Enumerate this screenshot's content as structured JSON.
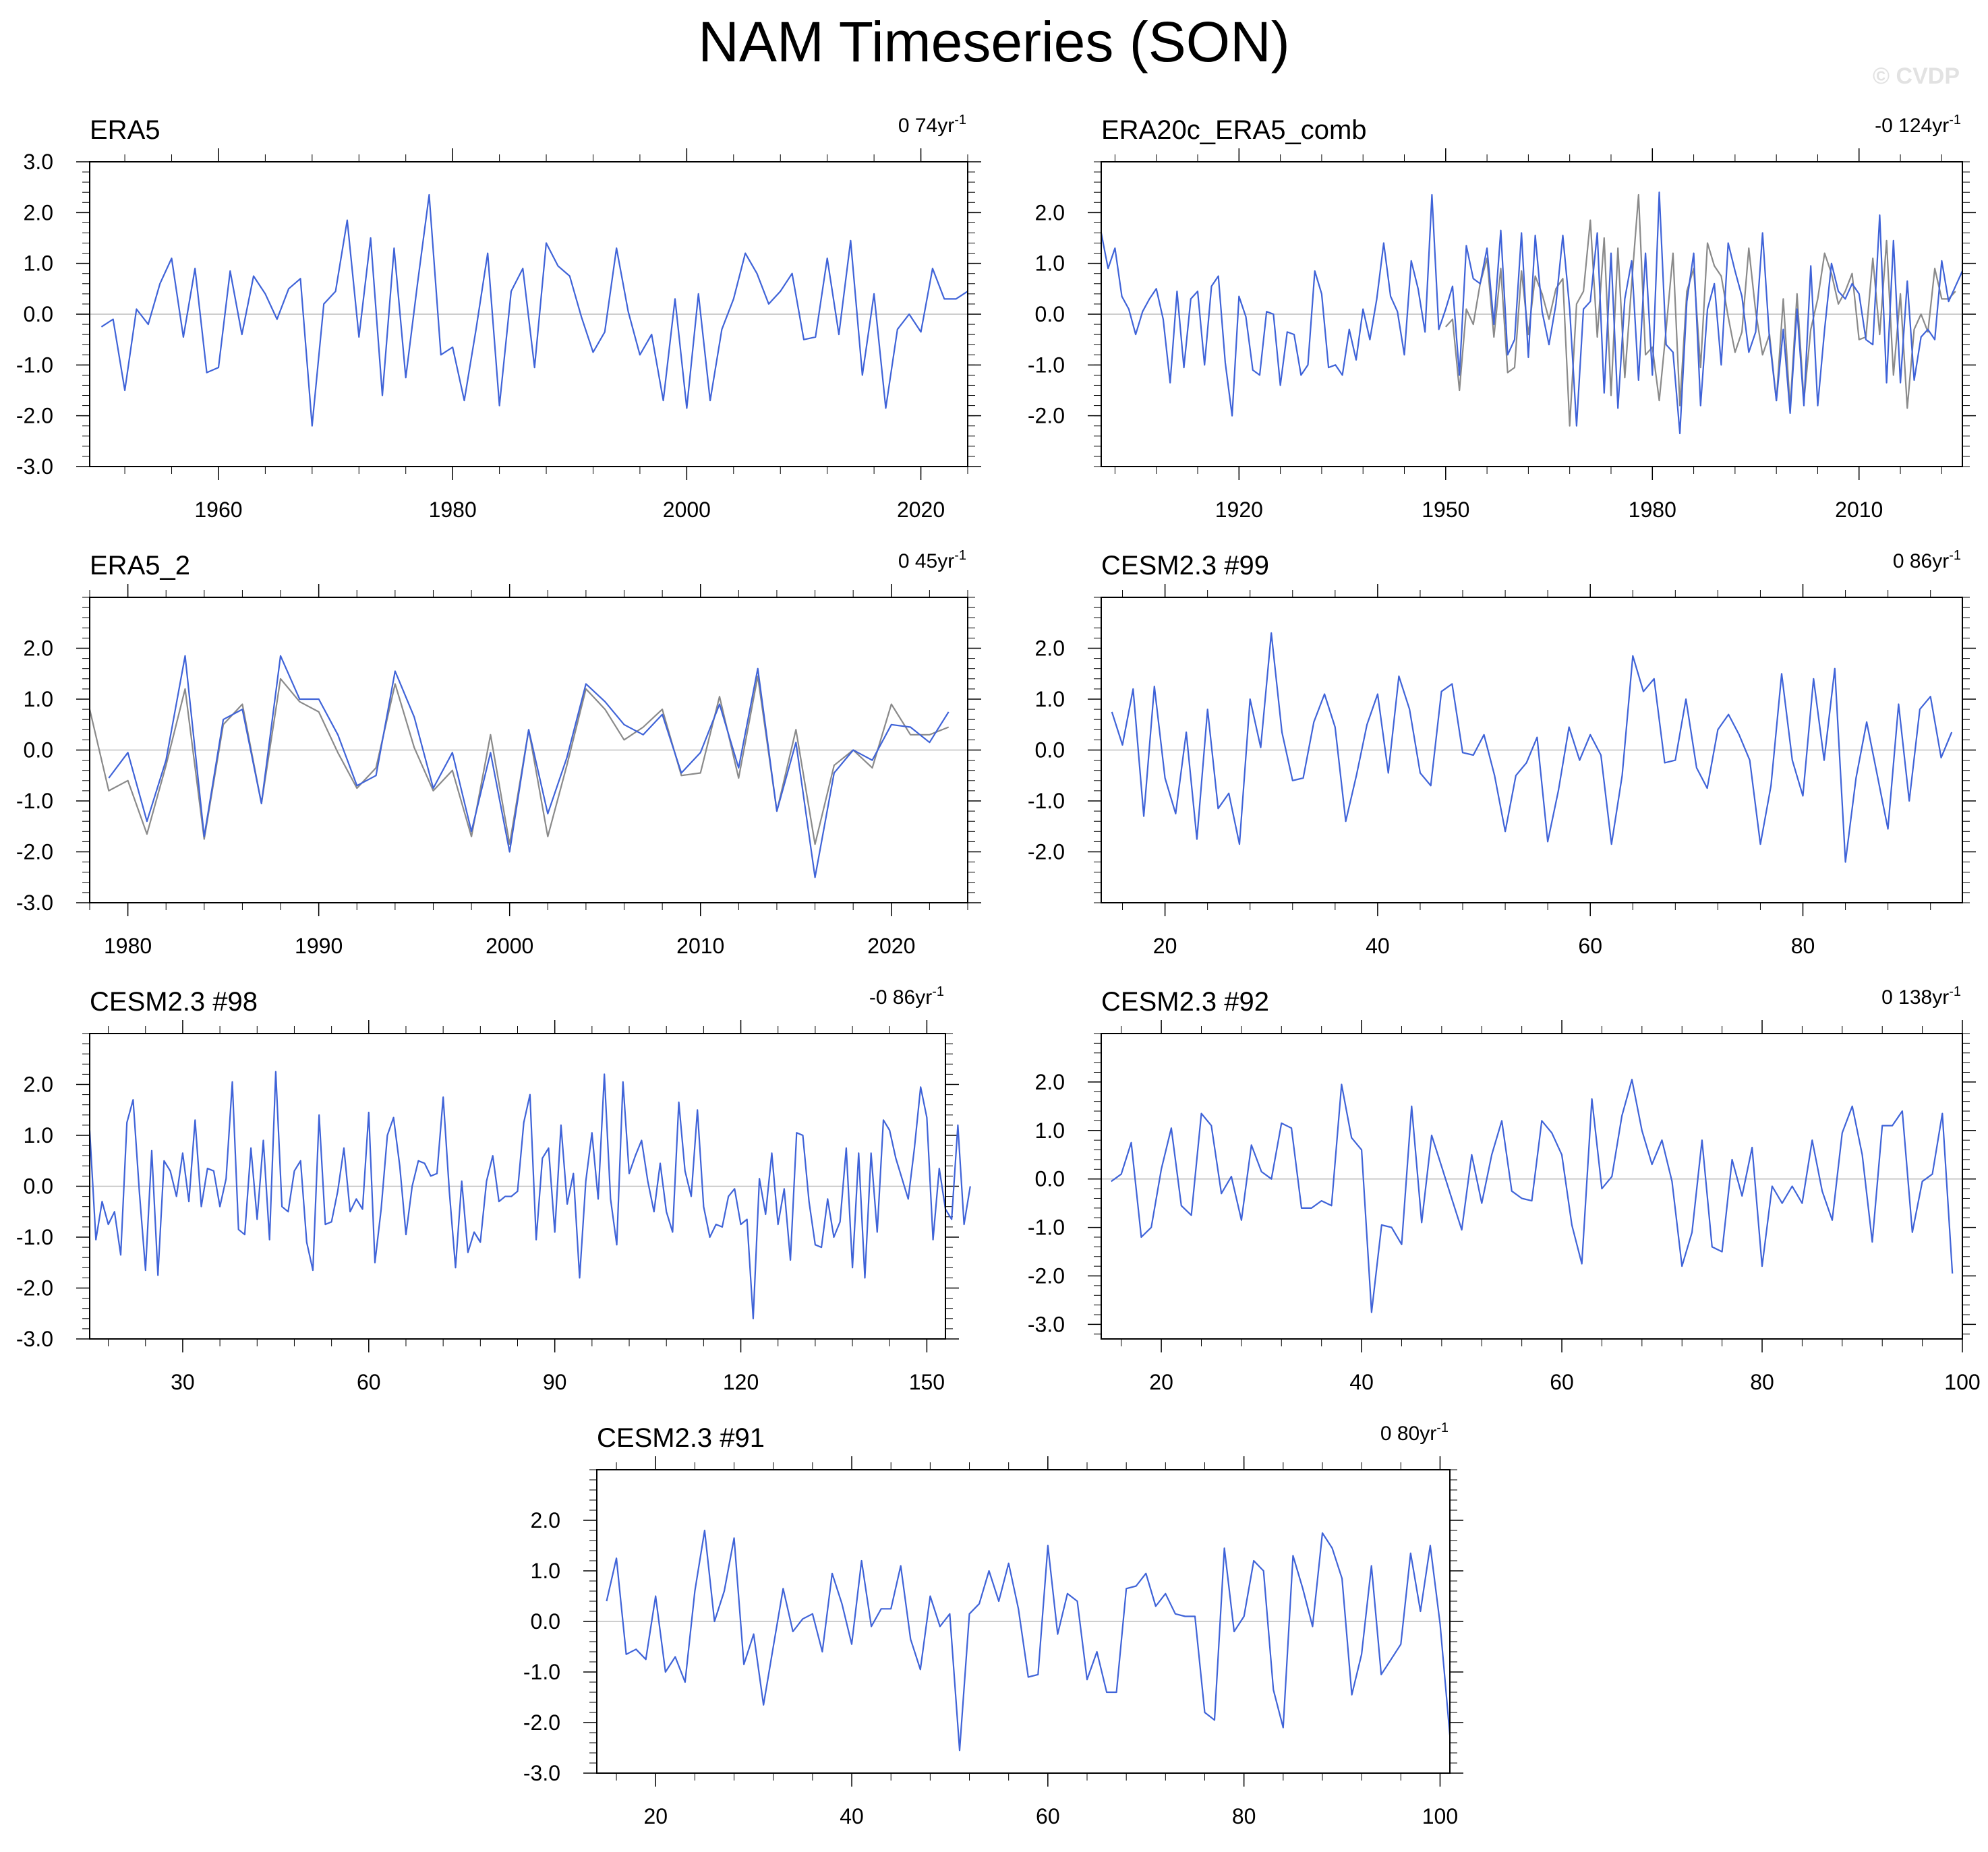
{
  "title": "NAM Timeseries (SON)",
  "watermark": "© CVDP",
  "colors": {
    "model": "#3f63d8",
    "obs": "#8a8a8a",
    "zero_line": "#bdbdbd"
  },
  "chart_data": [
    {
      "id": "p1",
      "type": "line",
      "title": "ERA5",
      "trend_text": "0 74yr",
      "trend_sup": "-1",
      "xlim": [
        1949,
        2024
      ],
      "ylim": [
        -3,
        3
      ],
      "xticks": [
        1960,
        1980,
        2000,
        2020
      ],
      "yticks": [
        -3,
        -2,
        -1,
        0,
        1,
        2,
        3
      ],
      "ytick_labels": [
        "-3.0",
        "-2.0",
        "-1.0",
        "0.0",
        "1.0",
        "2.0",
        "3.0"
      ],
      "series": [
        {
          "name": "ERA5",
          "color": "model",
          "x0": 1950,
          "values": [
            -0.25,
            -0.1,
            -1.5,
            0.1,
            -0.2,
            0.6,
            1.1,
            -0.45,
            0.9,
            -1.15,
            -1.05,
            0.85,
            -0.4,
            0.75,
            0.4,
            -0.1,
            0.5,
            0.7,
            -2.2,
            0.2,
            0.45,
            1.85,
            -0.45,
            1.5,
            -1.6,
            1.3,
            -1.25,
            0.6,
            2.35,
            -0.8,
            -0.65,
            -1.7,
            -0.3,
            1.2,
            -1.8,
            0.45,
            0.9,
            -1.05,
            1.4,
            0.95,
            0.75,
            -0.05,
            -0.75,
            -0.35,
            1.3,
            0.05,
            -0.8,
            -0.4,
            -1.7,
            0.3,
            -1.85,
            0.4,
            -1.7,
            -0.3,
            0.3,
            1.2,
            0.8,
            0.2,
            0.45,
            0.8,
            -0.5,
            -0.45,
            1.1,
            -0.4,
            1.45,
            -1.2,
            0.4,
            -1.85,
            -0.3,
            0.0,
            -0.35,
            0.9,
            0.3,
            0.3,
            0.45
          ]
        }
      ]
    },
    {
      "id": "p2",
      "type": "line",
      "title": "ERA20c_ERA5_comb",
      "trend_text": "-0 124yr",
      "trend_sup": "-1",
      "xlim": [
        1900,
        2025
      ],
      "ylim": [
        -3,
        3
      ],
      "xticks": [
        1920,
        1950,
        1980,
        2010
      ],
      "yticks": [
        -2,
        -1,
        0,
        1,
        2
      ],
      "ytick_labels": [
        "-2.0",
        "-1.0",
        "0.0",
        "1.0",
        "2.0"
      ],
      "series": [
        {
          "name": "ERA5",
          "color": "obs",
          "x0": 1950,
          "values": [
            -0.25,
            -0.1,
            -1.5,
            0.1,
            -0.2,
            0.6,
            1.1,
            -0.45,
            0.9,
            -1.15,
            -1.05,
            0.85,
            -0.4,
            0.75,
            0.4,
            -0.1,
            0.5,
            0.7,
            -2.2,
            0.2,
            0.45,
            1.85,
            -0.45,
            1.5,
            -1.6,
            1.3,
            -1.25,
            0.6,
            2.35,
            -0.8,
            -0.65,
            -1.7,
            -0.3,
            1.2,
            -1.8,
            0.45,
            0.9,
            -1.05,
            1.4,
            0.95,
            0.75,
            -0.05,
            -0.75,
            -0.35,
            1.3,
            0.05,
            -0.8,
            -0.4,
            -1.7,
            0.3,
            -1.85,
            0.4,
            -1.7,
            -0.3,
            0.3,
            1.2,
            0.8,
            0.2,
            0.45,
            0.8,
            -0.5,
            -0.45,
            1.1,
            -0.4,
            1.45,
            -1.2,
            0.4,
            -1.85,
            -0.3,
            0.0,
            -0.35,
            0.9,
            0.3,
            0.3,
            0.45
          ]
        },
        {
          "name": "ERA20c_ERA5_comb",
          "color": "model",
          "x0": 1900,
          "values": [
            1.6,
            0.9,
            1.3,
            0.35,
            0.1,
            -0.4,
            0.05,
            0.3,
            0.5,
            -0.1,
            -1.35,
            0.45,
            -1.05,
            0.3,
            0.45,
            -1.0,
            0.55,
            0.75,
            -0.95,
            -2.0,
            0.35,
            -0.05,
            -1.1,
            -1.2,
            0.05,
            0.0,
            -1.4,
            -0.35,
            -0.4,
            -1.2,
            -1.0,
            0.85,
            0.4,
            -1.05,
            -1.0,
            -1.2,
            -0.3,
            -0.9,
            0.1,
            -0.5,
            0.3,
            1.4,
            0.35,
            0.05,
            -0.8,
            1.05,
            0.5,
            -0.35,
            2.35,
            -0.3,
            0.1,
            0.55,
            -1.2,
            1.35,
            0.7,
            0.6,
            1.3,
            -0.2,
            1.65,
            -0.8,
            -0.5,
            1.6,
            -0.85,
            1.55,
            0.05,
            -0.6,
            0.2,
            1.55,
            0.1,
            -2.2,
            0.1,
            0.25,
            1.6,
            -1.55,
            1.2,
            -1.85,
            0.3,
            1.05,
            -1.3,
            1.2,
            -1.2,
            2.4,
            -0.6,
            -0.75,
            -2.35,
            0.25,
            1.2,
            -1.8,
            0.1,
            0.6,
            -1.0,
            1.4,
            0.85,
            0.35,
            -0.75,
            -0.35,
            1.6,
            -0.5,
            -1.7,
            -0.3,
            -1.95,
            0.1,
            -1.8,
            0.95,
            -1.8,
            -0.3,
            1.0,
            0.45,
            0.3,
            0.6,
            0.4,
            -0.5,
            -0.6,
            1.95,
            -1.35,
            1.45,
            -1.35,
            0.65,
            -1.3,
            -0.45,
            -0.3,
            -0.5,
            1.05,
            0.25,
            0.55,
            0.85
          ]
        }
      ]
    },
    {
      "id": "p3",
      "type": "line",
      "title": "ERA5_2",
      "trend_text": "0 45yr",
      "trend_sup": "-1",
      "xlim": [
        1978,
        2024
      ],
      "ylim": [
        -3,
        3
      ],
      "xticks": [
        1980,
        1990,
        2000,
        2010,
        2020
      ],
      "yticks": [
        -3,
        -2,
        -1,
        0,
        1,
        2
      ],
      "ytick_labels": [
        "-3.0",
        "-2.0",
        "-1.0",
        "0.0",
        "1.0",
        "2.0"
      ],
      "series": [
        {
          "name": "ERA5",
          "color": "obs",
          "x0": 1978,
          "values": [
            0.8,
            -0.8,
            -0.6,
            -1.65,
            -0.3,
            1.2,
            -1.75,
            0.5,
            0.9,
            -1.05,
            1.4,
            0.95,
            0.75,
            -0.05,
            -0.75,
            -0.35,
            1.3,
            0.05,
            -0.8,
            -0.4,
            -1.7,
            0.3,
            -1.85,
            0.4,
            -1.7,
            -0.3,
            1.2,
            0.8,
            0.2,
            0.45,
            0.8,
            -0.5,
            -0.45,
            1.05,
            -0.55,
            1.45,
            -1.2,
            0.4,
            -1.85,
            -0.3,
            0.0,
            -0.35,
            0.9,
            0.3,
            0.3,
            0.45
          ]
        },
        {
          "name": "ERA5_2",
          "color": "model",
          "x0": 1979,
          "values": [
            -0.55,
            -0.05,
            -1.4,
            -0.2,
            1.85,
            -1.7,
            0.6,
            0.8,
            -1.05,
            1.85,
            1.0,
            1.0,
            0.3,
            -0.7,
            -0.5,
            1.55,
            0.65,
            -0.75,
            -0.05,
            -1.6,
            -0.05,
            -2.0,
            0.4,
            -1.25,
            -0.15,
            1.3,
            0.95,
            0.5,
            0.3,
            0.7,
            -0.45,
            -0.05,
            0.9,
            -0.35,
            1.6,
            -1.2,
            0.15,
            -2.5,
            -0.45,
            0.0,
            -0.2,
            0.5,
            0.45,
            0.15,
            0.75
          ]
        }
      ]
    },
    {
      "id": "p4",
      "type": "line",
      "title": "CESM2.3 #99",
      "trend_text": "0 86yr",
      "trend_sup": "-1",
      "xlim": [
        14,
        95
      ],
      "ylim": [
        -3,
        3
      ],
      "xticks": [
        20,
        40,
        60,
        80
      ],
      "yticks": [
        -2,
        -1,
        0,
        1,
        2
      ],
      "ytick_labels": [
        "-2.0",
        "-1.0",
        "0.0",
        "1.0",
        "2.0"
      ],
      "series": [
        {
          "name": "CESM2.3 #99",
          "color": "model",
          "x0": 15,
          "values": [
            0.75,
            0.1,
            1.2,
            -1.3,
            1.25,
            -0.55,
            -1.25,
            0.35,
            -1.75,
            0.8,
            -1.15,
            -0.85,
            -1.85,
            1.0,
            0.05,
            2.3,
            0.35,
            -0.6,
            -0.55,
            0.55,
            1.1,
            0.45,
            -1.4,
            -0.5,
            0.5,
            1.1,
            -0.45,
            1.45,
            0.8,
            -0.45,
            -0.7,
            1.15,
            1.3,
            -0.05,
            -0.1,
            0.3,
            -0.5,
            -1.6,
            -0.5,
            -0.25,
            0.25,
            -1.8,
            -0.8,
            0.45,
            -0.2,
            0.3,
            -0.1,
            -1.85,
            -0.5,
            1.85,
            1.15,
            1.4,
            -0.25,
            -0.2,
            1.0,
            -0.35,
            -0.75,
            0.4,
            0.7,
            0.3,
            -0.2,
            -1.85,
            -0.7,
            1.5,
            -0.2,
            -0.9,
            1.4,
            -0.2,
            1.6,
            -2.2,
            -0.55,
            0.55,
            -0.5,
            -1.55,
            0.9,
            -1.0,
            0.8,
            1.05,
            -0.15,
            0.35
          ]
        }
      ]
    },
    {
      "id": "p5",
      "type": "line",
      "title": "CESM2.3 #98",
      "trend_text": "-0 86yr",
      "trend_sup": "-1",
      "xlim": [
        15,
        153
      ],
      "ylim": [
        -3,
        3
      ],
      "xticks": [
        30,
        60,
        90,
        120,
        150
      ],
      "yticks": [
        -3,
        -2,
        -1,
        0,
        1,
        2
      ],
      "ytick_labels": [
        "-3.0",
        "-2.0",
        "-1.0",
        "0.0",
        "1.0",
        "2.0"
      ],
      "series": [
        {
          "name": "CESM2.3 #98",
          "color": "model",
          "x0": 15,
          "values": [
            1.1,
            -1.05,
            -0.3,
            -0.75,
            -0.5,
            -1.35,
            1.25,
            1.7,
            -0.1,
            -1.65,
            0.7,
            -1.75,
            0.5,
            0.3,
            -0.2,
            0.65,
            -0.3,
            1.3,
            -0.4,
            0.35,
            0.3,
            -0.4,
            0.15,
            2.05,
            -0.85,
            -0.95,
            0.75,
            -0.65,
            0.9,
            -1.05,
            2.25,
            -0.4,
            -0.5,
            0.3,
            0.5,
            -1.1,
            -1.65,
            1.4,
            -0.75,
            -0.7,
            -0.1,
            0.75,
            -0.5,
            -0.25,
            -0.45,
            1.45,
            -1.5,
            -0.45,
            1.0,
            1.35,
            0.4,
            -0.95,
            0.0,
            0.5,
            0.45,
            0.2,
            0.25,
            1.75,
            -0.1,
            -1.6,
            0.1,
            -1.3,
            -0.9,
            -1.1,
            0.1,
            0.6,
            -0.3,
            -0.2,
            -0.2,
            -0.1,
            1.25,
            1.8,
            -1.05,
            0.55,
            0.75,
            -0.9,
            1.2,
            -0.35,
            0.25,
            -1.8,
            0.1,
            1.05,
            -0.25,
            2.2,
            -0.25,
            -1.15,
            2.05,
            0.25,
            0.6,
            0.9,
            0.1,
            -0.5,
            0.45,
            -0.5,
            -0.9,
            1.65,
            0.3,
            -0.2,
            1.5,
            -0.4,
            -1.0,
            -0.75,
            -0.8,
            -0.2,
            -0.05,
            -0.75,
            -0.65,
            -2.6,
            0.15,
            -0.55,
            0.65,
            -0.75,
            -0.05,
            -1.45,
            1.05,
            1.0,
            -0.3,
            -1.15,
            -1.2,
            -0.25,
            -1.0,
            -0.7,
            0.75,
            -1.6,
            0.65,
            -1.8,
            0.65,
            -0.9,
            1.3,
            1.1,
            0.55,
            0.15,
            -0.25,
            0.75,
            1.95,
            1.35,
            -1.05,
            0.35,
            -0.45,
            -0.65,
            1.2,
            -0.75,
            0.0
          ]
        }
      ]
    },
    {
      "id": "p6",
      "type": "line",
      "title": "CESM2.3 #92",
      "trend_text": "0 138yr",
      "trend_sup": "-1",
      "xlim": [
        14,
        100
      ],
      "ylim": [
        -3.3,
        3
      ],
      "xticks": [
        20,
        40,
        60,
        80,
        100
      ],
      "yticks": [
        -3,
        -2,
        -1,
        0,
        1,
        2
      ],
      "ytick_labels": [
        "-3.0",
        "-2.0",
        "-1.0",
        "0.0",
        "1.0",
        "2.0"
      ],
      "series": [
        {
          "name": "CESM2.3 #92",
          "color": "model",
          "x0": 15,
          "values": [
            -0.05,
            0.1,
            0.75,
            -1.2,
            -1.0,
            0.2,
            1.05,
            -0.55,
            -0.75,
            1.35,
            1.1,
            -0.3,
            0.05,
            -0.85,
            0.7,
            0.15,
            0.0,
            1.15,
            1.05,
            -0.6,
            -0.6,
            -0.45,
            -0.55,
            1.95,
            0.85,
            0.6,
            -2.75,
            -0.95,
            -1.0,
            -1.35,
            1.5,
            -0.9,
            0.9,
            0.25,
            -0.4,
            -1.05,
            0.5,
            -0.5,
            0.5,
            1.2,
            -0.25,
            -0.4,
            -0.45,
            1.2,
            0.95,
            0.5,
            -0.95,
            -1.75,
            1.65,
            -0.2,
            0.05,
            1.3,
            2.05,
            1.0,
            0.3,
            0.8,
            -0.05,
            -1.8,
            -1.1,
            0.8,
            -1.4,
            -1.5,
            0.4,
            -0.35,
            0.65,
            -1.8,
            -0.15,
            -0.5,
            -0.15,
            -0.5,
            0.8,
            -0.25,
            -0.85,
            0.95,
            1.5,
            0.5,
            -1.3,
            1.1,
            1.1,
            1.4,
            -1.1,
            -0.05,
            0.1,
            1.35,
            -1.95
          ]
        }
      ]
    },
    {
      "id": "p7",
      "type": "line",
      "title": "CESM2.3 #91",
      "trend_text": "0 80yr",
      "trend_sup": "-1",
      "xlim": [
        14,
        101
      ],
      "ylim": [
        -3,
        3
      ],
      "xticks": [
        20,
        40,
        60,
        80,
        100
      ],
      "yticks": [
        -3,
        -2,
        -1,
        0,
        1,
        2
      ],
      "ytick_labels": [
        "-3.0",
        "-2.0",
        "-1.0",
        "0.0",
        "1.0",
        "2.0"
      ],
      "series": [
        {
          "name": "CESM2.3 #91",
          "color": "model",
          "x0": 15,
          "values": [
            0.4,
            1.25,
            -0.65,
            -0.55,
            -0.75,
            0.5,
            -1.0,
            -0.7,
            -1.2,
            0.6,
            1.8,
            0.0,
            0.6,
            1.65,
            -0.85,
            -0.25,
            -1.65,
            -0.5,
            0.65,
            -0.2,
            0.05,
            0.15,
            -0.6,
            0.95,
            0.35,
            -0.45,
            1.2,
            -0.1,
            0.25,
            0.25,
            1.1,
            -0.35,
            -0.95,
            0.5,
            -0.1,
            0.15,
            -2.55,
            0.15,
            0.35,
            1.0,
            0.4,
            1.15,
            0.25,
            -1.1,
            -1.05,
            1.5,
            -0.25,
            0.55,
            0.4,
            -1.15,
            -0.6,
            -1.4,
            -1.4,
            0.65,
            0.7,
            0.95,
            0.3,
            0.55,
            0.15,
            0.1,
            0.1,
            -1.8,
            -1.95,
            1.45,
            -0.2,
            0.1,
            1.2,
            1.0,
            -1.35,
            -2.1,
            1.3,
            0.65,
            -0.1,
            1.75,
            1.45,
            0.85,
            -1.45,
            -0.65,
            1.1,
            -1.05,
            -0.75,
            -0.45,
            1.35,
            0.2,
            1.5,
            -0.05,
            -2.25
          ]
        }
      ]
    }
  ]
}
